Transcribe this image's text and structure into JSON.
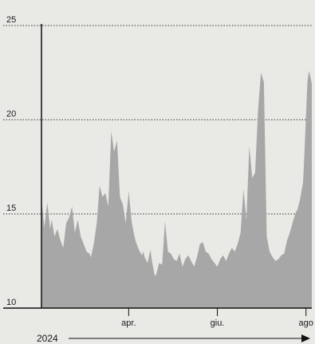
{
  "chart_data": {
    "type": "area",
    "title": "",
    "xlabel": "2024",
    "ylabel": "",
    "ylim": [
      10,
      25
    ],
    "yticks": [
      10,
      15,
      20,
      25
    ],
    "x_range": [
      "2024-02-01",
      "2024-08-05"
    ],
    "xticks": [
      {
        "date": "2024-04-01",
        "label": "apr."
      },
      {
        "date": "2024-06-01",
        "label": "giu."
      },
      {
        "date": "2024-08-01",
        "label": "ago"
      }
    ],
    "grid": "horizontal dotted",
    "fill_color": "#a7a7a7",
    "series": [
      {
        "x": [
          "2024-02-01",
          "2024-02-03",
          "2024-02-05",
          "2024-02-07",
          "2024-02-08",
          "2024-02-10",
          "2024-02-12",
          "2024-02-14",
          "2024-02-16",
          "2024-02-18",
          "2024-02-20",
          "2024-02-22",
          "2024-02-24",
          "2024-02-26",
          "2024-02-28",
          "2024-03-01",
          "2024-03-03",
          "2024-03-05",
          "2024-03-06",
          "2024-03-08",
          "2024-03-10",
          "2024-03-12",
          "2024-03-14",
          "2024-03-16",
          "2024-03-18",
          "2024-03-20",
          "2024-03-22",
          "2024-03-24",
          "2024-03-26",
          "2024-03-28",
          "2024-03-30",
          "2024-04-01",
          "2024-04-03",
          "2024-04-05",
          "2024-04-06",
          "2024-04-07",
          "2024-04-08",
          "2024-04-10",
          "2024-04-11",
          "2024-04-12",
          "2024-04-14",
          "2024-04-16",
          "2024-04-17",
          "2024-04-18",
          "2024-04-19",
          "2024-04-20",
          "2024-04-22",
          "2024-04-24",
          "2024-04-26",
          "2024-04-28",
          "2024-04-30",
          "2024-05-02",
          "2024-05-04",
          "2024-05-06",
          "2024-05-08",
          "2024-05-10",
          "2024-05-12",
          "2024-05-14",
          "2024-05-16",
          "2024-05-18",
          "2024-05-20",
          "2024-05-22",
          "2024-05-24",
          "2024-05-26",
          "2024-05-28",
          "2024-05-30",
          "2024-06-01",
          "2024-06-03",
          "2024-06-05",
          "2024-06-07",
          "2024-06-09",
          "2024-06-11",
          "2024-06-13",
          "2024-06-15",
          "2024-06-17",
          "2024-06-19",
          "2024-06-21",
          "2024-06-23",
          "2024-06-25",
          "2024-06-27",
          "2024-06-29",
          "2024-07-01",
          "2024-07-03",
          "2024-07-05",
          "2024-07-07",
          "2024-07-09",
          "2024-07-11",
          "2024-07-13",
          "2024-07-15",
          "2024-07-17",
          "2024-07-19",
          "2024-07-20",
          "2024-07-22",
          "2024-07-23",
          "2024-07-25",
          "2024-07-26",
          "2024-07-28",
          "2024-07-30",
          "2024-07-31",
          "2024-08-01",
          "2024-08-02",
          "2024-08-03",
          "2024-08-04",
          "2024-08-05"
        ],
        "y": [
          15.8,
          14.3,
          15.6,
          14.2,
          14.7,
          13.8,
          14.2,
          13.6,
          13.2,
          14.5,
          14.8,
          15.4,
          14.0,
          14.7,
          13.8,
          13.4,
          13.0,
          12.9,
          12.7,
          13.4,
          14.5,
          16.5,
          15.9,
          16.1,
          15.4,
          19.4,
          18.3,
          18.9,
          15.9,
          15.5,
          14.5,
          16.2,
          14.6,
          13.8,
          13.5,
          13.3,
          13.1,
          12.8,
          13.0,
          12.7,
          12.4,
          13.1,
          12.5,
          12.1,
          11.7,
          11.8,
          12.4,
          12.3,
          14.6,
          13.0,
          12.9,
          12.6,
          12.5,
          12.9,
          12.2,
          12.6,
          12.8,
          12.5,
          12.2,
          12.7,
          13.4,
          13.5,
          13.0,
          12.9,
          12.6,
          12.4,
          12.2,
          12.6,
          12.8,
          12.5,
          12.9,
          13.2,
          13.0,
          13.4,
          14.0,
          16.3,
          14.7,
          18.6,
          16.9,
          17.2,
          20.5,
          22.5,
          22.0,
          13.8,
          13.0,
          12.7,
          12.5,
          12.6,
          12.8,
          12.9,
          13.6,
          13.8,
          14.3,
          14.6,
          15.1,
          15.2,
          15.8,
          16.7,
          18.4,
          20.2,
          22.0,
          22.6,
          22.3,
          21.9
        ]
      }
    ]
  }
}
